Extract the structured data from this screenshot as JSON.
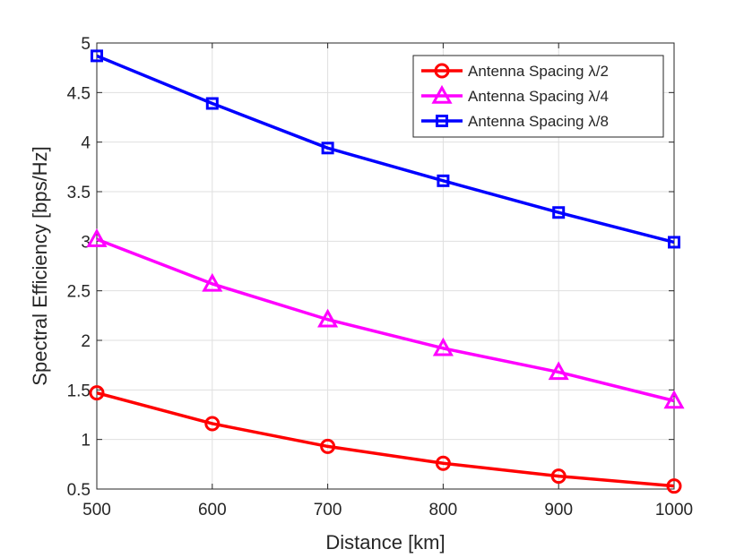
{
  "chart_data": {
    "type": "line",
    "title": "",
    "xlabel": "Distance [km]",
    "ylabel": "Spectral Efficiency [bps/Hz]",
    "x": [
      500,
      600,
      700,
      800,
      900,
      1000
    ],
    "xlim": [
      500,
      1000
    ],
    "ylim": [
      0.5,
      5
    ],
    "xticks": [
      500,
      600,
      700,
      800,
      900,
      1000
    ],
    "xtick_labels": [
      "500",
      "600",
      "700",
      "800",
      "900",
      "1000"
    ],
    "yticks": [
      0.5,
      1,
      1.5,
      2,
      2.5,
      3,
      3.5,
      4,
      4.5,
      5
    ],
    "ytick_labels": [
      "0.5",
      "1",
      "1.5",
      "2",
      "2.5",
      "3",
      "3.5",
      "4",
      "4.5",
      "5"
    ],
    "grid": true,
    "legend_position": "top-right",
    "series": [
      {
        "name": "Antenna Spacing λ/2",
        "color": "#ff0000",
        "marker": "circle",
        "values": [
          1.47,
          1.16,
          0.93,
          0.76,
          0.63,
          0.53
        ]
      },
      {
        "name": "Antenna Spacing λ/4",
        "color": "#ff00ff",
        "marker": "triangle",
        "values": [
          3.02,
          2.57,
          2.21,
          1.92,
          1.68,
          1.39
        ]
      },
      {
        "name": "Antenna Spacing λ/8",
        "color": "#0000ff",
        "marker": "square",
        "values": [
          4.87,
          4.39,
          3.94,
          3.61,
          3.29,
          2.99
        ]
      }
    ]
  }
}
